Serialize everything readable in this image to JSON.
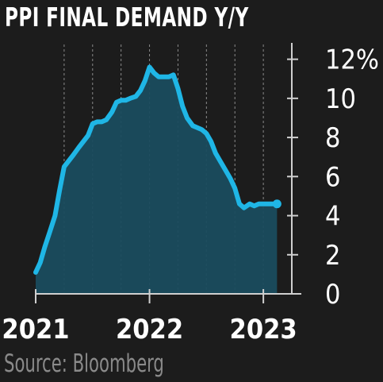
{
  "colors": {
    "background": "#1c1c1c",
    "line": "#1fb6e6",
    "area": "#1a4c5e",
    "axis": "#cfcfcf",
    "grid": "#8a8a8a",
    "source_text": "#8a8a8a"
  },
  "chart_data": {
    "type": "area",
    "title": "PPI FINAL DEMAND Y/Y",
    "source": "Source: Bloomberg",
    "y_ticks": [
      "0",
      "2",
      "4",
      "6",
      "8",
      "10",
      "12%"
    ],
    "y_tick_values": [
      0,
      2,
      4,
      6,
      8,
      10,
      12
    ],
    "x_ticks": [
      "2021",
      "2022",
      "2023"
    ],
    "x_tick_values": [
      2021.0,
      2022.0,
      2023.0
    ],
    "ylim": [
      0,
      13
    ],
    "xlim": [
      2021.0,
      2023.25
    ],
    "grid": "vertical dashed, quarterly",
    "y_axis_side": "right",
    "series": [
      {
        "x": [
          2021.0,
          2021.04,
          2021.08,
          2021.12,
          2021.17,
          2021.21,
          2021.25,
          2021.29,
          2021.33,
          2021.38,
          2021.42,
          2021.46,
          2021.5,
          2021.54,
          2021.58,
          2021.62,
          2021.67,
          2021.71,
          2021.75,
          2021.79,
          2021.83,
          2021.88,
          2021.92,
          2021.96,
          2022.0,
          2022.04,
          2022.08,
          2022.12,
          2022.17,
          2022.21,
          2022.25,
          2022.29,
          2022.33,
          2022.38,
          2022.42,
          2022.46,
          2022.5,
          2022.54,
          2022.58,
          2022.62,
          2022.67,
          2022.71,
          2022.75,
          2022.79,
          2022.83,
          2022.88,
          2022.92,
          2022.96,
          2023.0,
          2023.04,
          2023.08,
          2023.12
        ],
        "values": [
          1.1,
          1.6,
          2.4,
          3.1,
          4.0,
          5.3,
          6.5,
          6.8,
          7.1,
          7.5,
          7.8,
          8.1,
          8.7,
          8.8,
          8.8,
          8.9,
          9.3,
          9.8,
          9.9,
          9.9,
          10.0,
          10.1,
          10.4,
          10.9,
          11.6,
          11.3,
          11.1,
          11.1,
          11.1,
          11.2,
          10.5,
          9.6,
          9.0,
          8.6,
          8.5,
          8.4,
          8.2,
          7.8,
          7.2,
          6.8,
          6.3,
          5.9,
          5.4,
          4.6,
          4.4,
          4.6,
          4.5,
          4.6,
          4.6,
          4.6,
          4.6,
          4.6
        ]
      }
    ]
  }
}
